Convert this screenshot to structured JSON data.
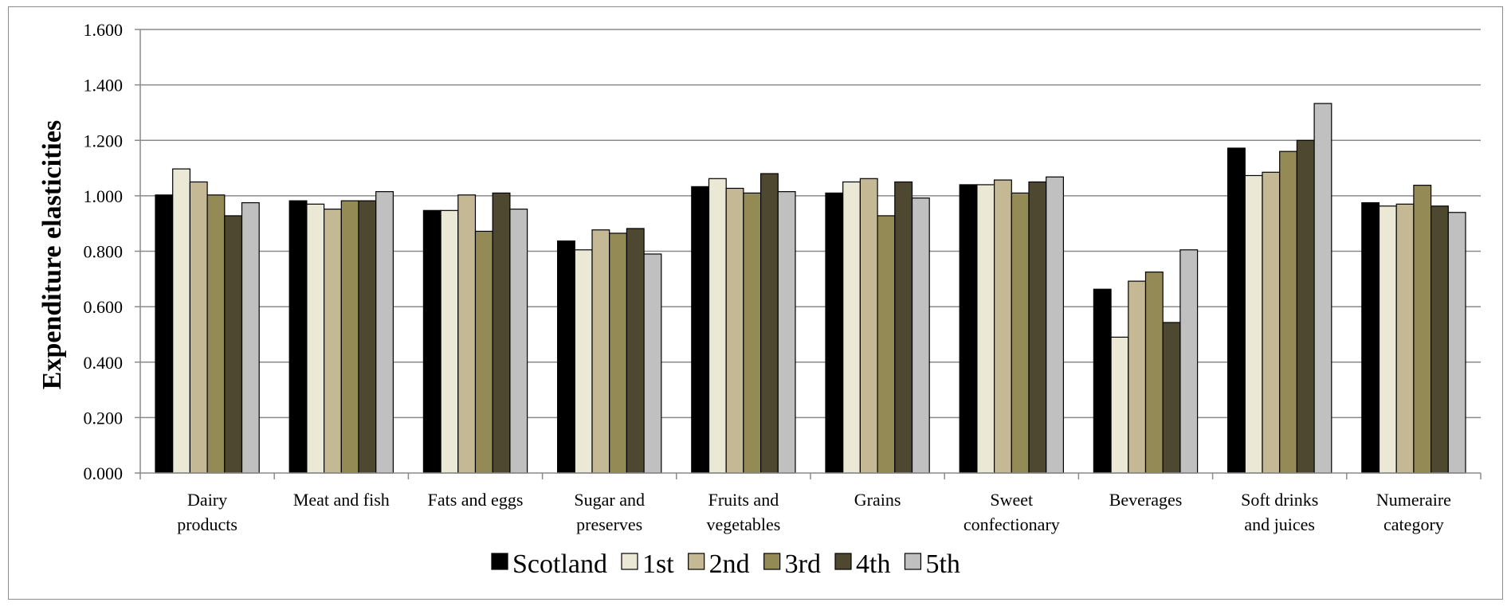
{
  "chart_data": {
    "type": "bar",
    "title": "",
    "xlabel": "",
    "ylabel": "Expenditure elasticities",
    "ylim": [
      0,
      1.6
    ],
    "yticks": [
      "0.000",
      "0.200",
      "0.400",
      "0.600",
      "0.800",
      "1.000",
      "1.200",
      "1.400",
      "1.600"
    ],
    "grid": true,
    "legend_position": "bottom",
    "categories": [
      [
        "Dairy",
        "products"
      ],
      [
        "Meat and fish"
      ],
      [
        "Fats and eggs"
      ],
      [
        "Sugar and",
        "preserves"
      ],
      [
        "Fruits and",
        "vegetables"
      ],
      [
        "Grains"
      ],
      [
        "Sweet",
        "confectionary"
      ],
      [
        "Beverages"
      ],
      [
        "Soft drinks",
        "and juices"
      ],
      [
        "Numeraire",
        "category"
      ]
    ],
    "series": [
      {
        "name": "Scotland",
        "color": "#000000",
        "values": [
          1.003,
          0.982,
          0.947,
          0.837,
          1.033,
          1.01,
          1.04,
          0.663,
          1.172,
          0.975
        ]
      },
      {
        "name": "1st",
        "color": "#ece8d6",
        "values": [
          1.097,
          0.97,
          0.947,
          0.805,
          1.062,
          1.05,
          1.04,
          0.49,
          1.073,
          0.963
        ]
      },
      {
        "name": "2nd",
        "color": "#c4b994",
        "values": [
          1.05,
          0.952,
          1.003,
          0.877,
          1.027,
          1.062,
          1.057,
          0.692,
          1.085,
          0.97
        ]
      },
      {
        "name": "3rd",
        "color": "#948a56",
        "values": [
          1.003,
          0.982,
          0.872,
          0.865,
          1.01,
          0.928,
          1.01,
          0.725,
          1.16,
          1.038
        ]
      },
      {
        "name": "4th",
        "color": "#4f4830",
        "values": [
          0.928,
          0.982,
          1.01,
          0.882,
          1.08,
          1.05,
          1.05,
          0.543,
          1.2,
          0.963
        ]
      },
      {
        "name": "5th",
        "color": "#c0c0c0",
        "values": [
          0.975,
          1.015,
          0.952,
          0.79,
          1.015,
          0.992,
          1.068,
          0.805,
          1.333,
          0.94
        ]
      }
    ]
  }
}
